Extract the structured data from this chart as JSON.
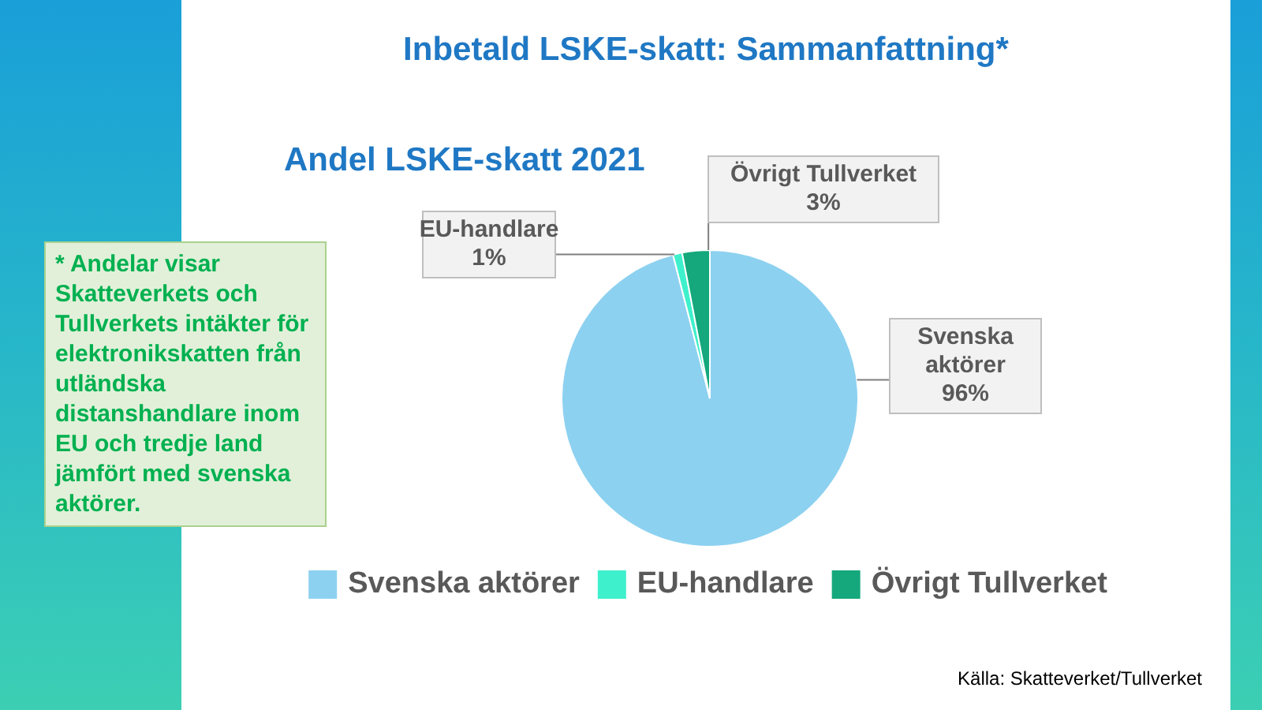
{
  "chart_data": {
    "type": "pie",
    "title": "Inbetald LSKE-skatt: Sammanfattning*",
    "subtitle": "Andel LSKE-skatt 2021",
    "categories": [
      "Svenska aktörer",
      "EU-handlare",
      "Övrigt Tullverket"
    ],
    "values": [
      96,
      1,
      3
    ],
    "colors": [
      "#8dd1f0",
      "#3ff0cc",
      "#14a87c"
    ],
    "value_labels": [
      "96%",
      "1%",
      "3%"
    ],
    "legend": "bottom",
    "annotations": [
      "* Andelar visar Skatteverkets och Tullverkets intäkter för elektronikskatten från utländska distanshandlare inom EU och tredje land jämfört med svenska aktörer.",
      "Källa: Skatteverket/Tullverket"
    ]
  }
}
